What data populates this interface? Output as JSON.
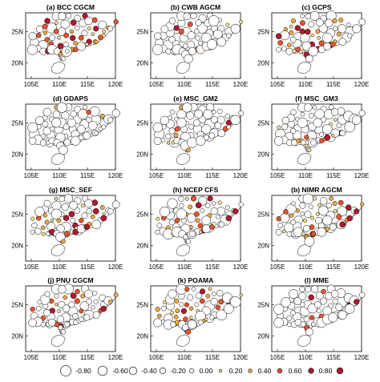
{
  "figure": {
    "panels": [
      {
        "title": "(a) BCC CGCM",
        "seed": 11,
        "warm": 0.55
      },
      {
        "title": "(b) CWB AGCM",
        "seed": 23,
        "warm": 0.12
      },
      {
        "title": "(c) GCPS",
        "seed": 37,
        "warm": 0.45
      },
      {
        "title": "(d) GDAPS",
        "seed": 41,
        "warm": 0.1
      },
      {
        "title": "(e) MSC_GM2",
        "seed": 53,
        "warm": 0.14
      },
      {
        "title": "(f) MSC_GM3",
        "seed": 67,
        "warm": 0.16
      },
      {
        "title": "(g) MSC_SEF",
        "seed": 71,
        "warm": 0.4
      },
      {
        "title": "(h) NCEP CFS",
        "seed": 83,
        "warm": 0.35
      },
      {
        "title": "(b) NIMR AGCM",
        "seed": 97,
        "warm": 0.4
      },
      {
        "title": "(j) PNU CGCM",
        "seed": 101,
        "warm": 0.3
      },
      {
        "title": "(k) POAMA",
        "seed": 113,
        "warm": 0.45
      },
      {
        "title": "(l) MME",
        "seed": 127,
        "warm": 0.15
      }
    ],
    "x_ticks": [
      "105E",
      "110E",
      "115E",
      "120E"
    ],
    "y_ticks": [
      "25N",
      "20N"
    ],
    "legend": {
      "labels": [
        "-0.80",
        "-0.60",
        "-0.40",
        "-0.20",
        "0.00",
        "0.20",
        "0.40",
        "0.60",
        "0.80"
      ],
      "colors": {
        "negative": "#ffffff",
        "neutral": "#ffffff",
        "low": "#f7e08a",
        "mid": "#f2a93b",
        "high": "#e6552a",
        "max": "#b2182b"
      }
    }
  }
}
